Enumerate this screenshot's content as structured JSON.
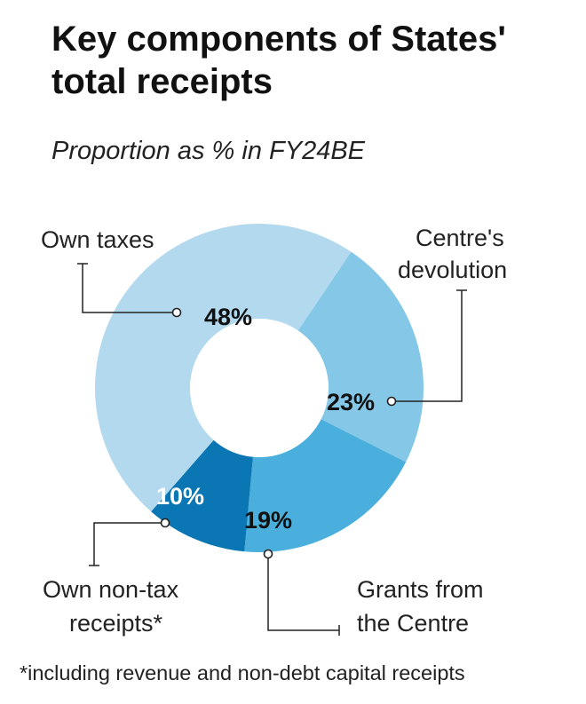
{
  "title": "Key components of States' total receipts",
  "subtitle": "Proportion as % in FY24BE",
  "footnote": "*including revenue and non-debt capital receipts",
  "chart_data": {
    "type": "pie",
    "variant": "donut",
    "title": "Key components of States' total receipts",
    "subtitle": "Proportion as % in FY24BE",
    "unit": "%",
    "slices": [
      {
        "label": "Own taxes",
        "value": 48,
        "value_label": "48%",
        "color": "#b3d9ef"
      },
      {
        "label": "Centre's devolution",
        "value": 23,
        "value_label": "23%",
        "color": "#85c7e6"
      },
      {
        "label": "Grants from the Centre",
        "value": 19,
        "value_label": "19%",
        "color": "#4aafdc"
      },
      {
        "label": "Own non-tax receipts*",
        "value": 10,
        "value_label": "10%",
        "color": "#0a76b3"
      }
    ]
  },
  "labels": {
    "own_taxes": "Own taxes",
    "centre_devolution_1": "Centre's",
    "centre_devolution_2": "devolution",
    "grants_1": "Grants from",
    "grants_2": "the Centre",
    "non_tax_1": "Own non-tax",
    "non_tax_2": "receipts*"
  }
}
